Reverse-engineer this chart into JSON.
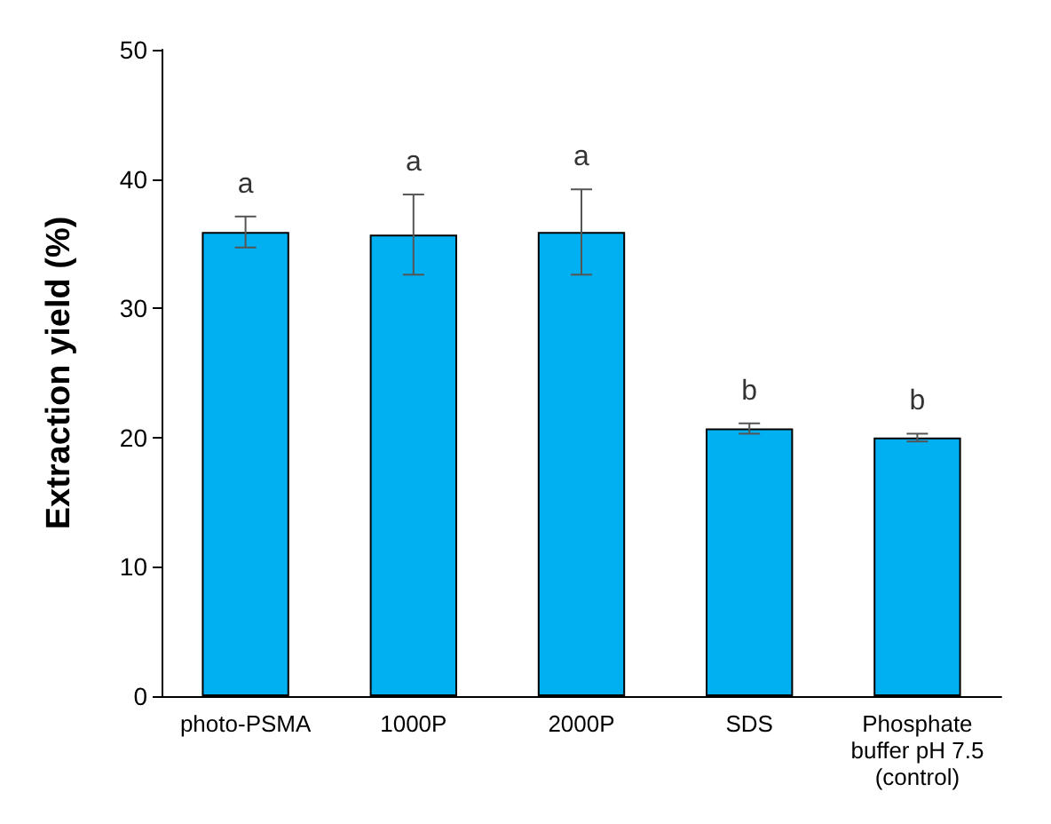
{
  "chart_data": {
    "type": "bar",
    "ylabel": "Extraction yield (%)",
    "categories": [
      "photo-PSMA",
      "1000P",
      "2000P",
      "SDS",
      "Phosphate\nbuffer pH 7.5\n(control)"
    ],
    "values": [
      35.9,
      35.7,
      35.9,
      20.7,
      20.0
    ],
    "errors": [
      1.2,
      3.1,
      3.3,
      0.4,
      0.3
    ],
    "color": "#00b0f0",
    "ylim": [
      0,
      50
    ],
    "yticks": [
      0,
      10,
      20,
      30,
      40,
      50
    ],
    "grid": false,
    "annotations": [
      "a",
      "a",
      "a",
      "b",
      "b"
    ]
  }
}
